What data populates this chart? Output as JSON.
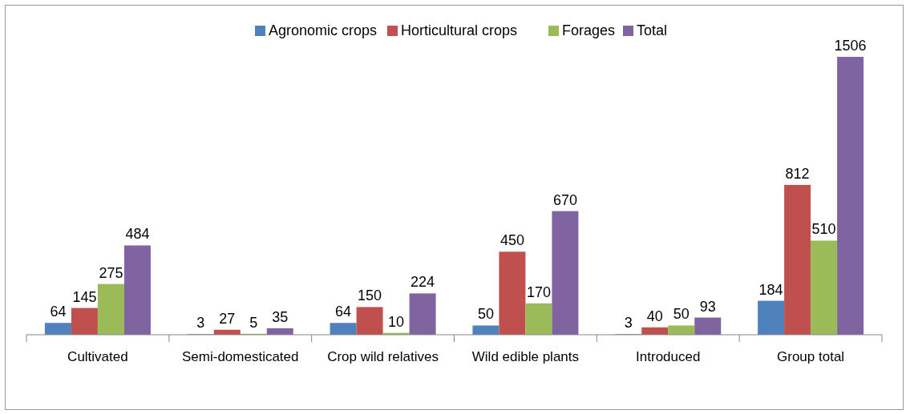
{
  "chart_data": {
    "type": "bar",
    "categories": [
      "Cultivated",
      "Semi-domesticated",
      "Crop wild relatives",
      "Wild edible plants",
      "Introduced",
      "Group total"
    ],
    "series": [
      {
        "name": "Agronomic crops",
        "color": "#4f81bd",
        "values": [
          64,
          3,
          64,
          50,
          3,
          184
        ]
      },
      {
        "name": "Horticultural crops",
        "color": "#c0504d",
        "values": [
          145,
          27,
          150,
          450,
          40,
          812
        ]
      },
      {
        "name": "Forages",
        "color": "#9bbb59",
        "values": [
          275,
          5,
          10,
          170,
          50,
          510
        ]
      },
      {
        "name": "Total",
        "color": "#8064a2",
        "values": [
          484,
          35,
          224,
          670,
          93,
          1506
        ]
      }
    ],
    "data_labels": true,
    "legend": "top"
  }
}
